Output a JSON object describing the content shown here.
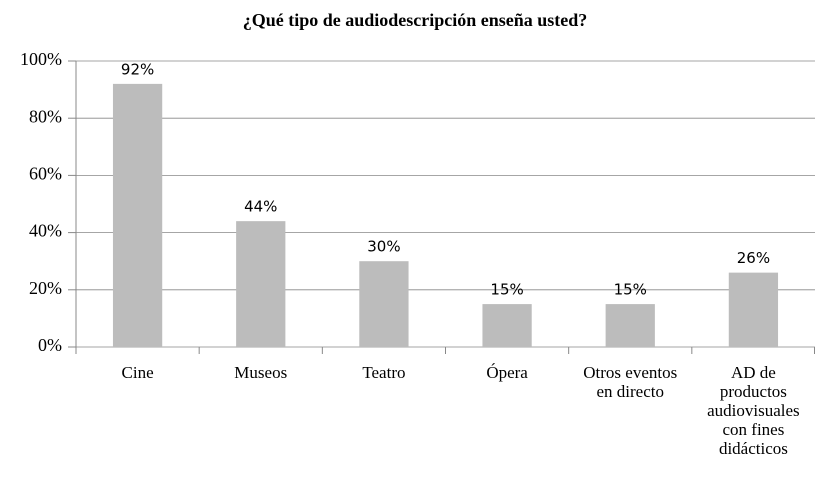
{
  "chart_data": {
    "type": "bar",
    "title": "¿Qué tipo de audiodescripción enseña usted?",
    "categories": [
      "Cine",
      "Museos",
      "Teatro",
      "Ópera",
      "Otros eventos en directo",
      "AD de productos audiovisuales con fines didácticos"
    ],
    "values": [
      92,
      44,
      30,
      15,
      15,
      26
    ],
    "value_labels": [
      "92%",
      "44%",
      "30%",
      "15%",
      "15%",
      "26%"
    ],
    "color": "#bcbcbc",
    "ylim": [
      0,
      100
    ],
    "yticks": [
      {
        "value": 0,
        "label": "0%"
      },
      {
        "value": 20,
        "label": "20%"
      },
      {
        "value": 40,
        "label": "40%"
      },
      {
        "value": 60,
        "label": "60%"
      },
      {
        "value": 80,
        "label": "80%"
      },
      {
        "value": 100,
        "label": "100%"
      }
    ],
    "grid": true
  }
}
